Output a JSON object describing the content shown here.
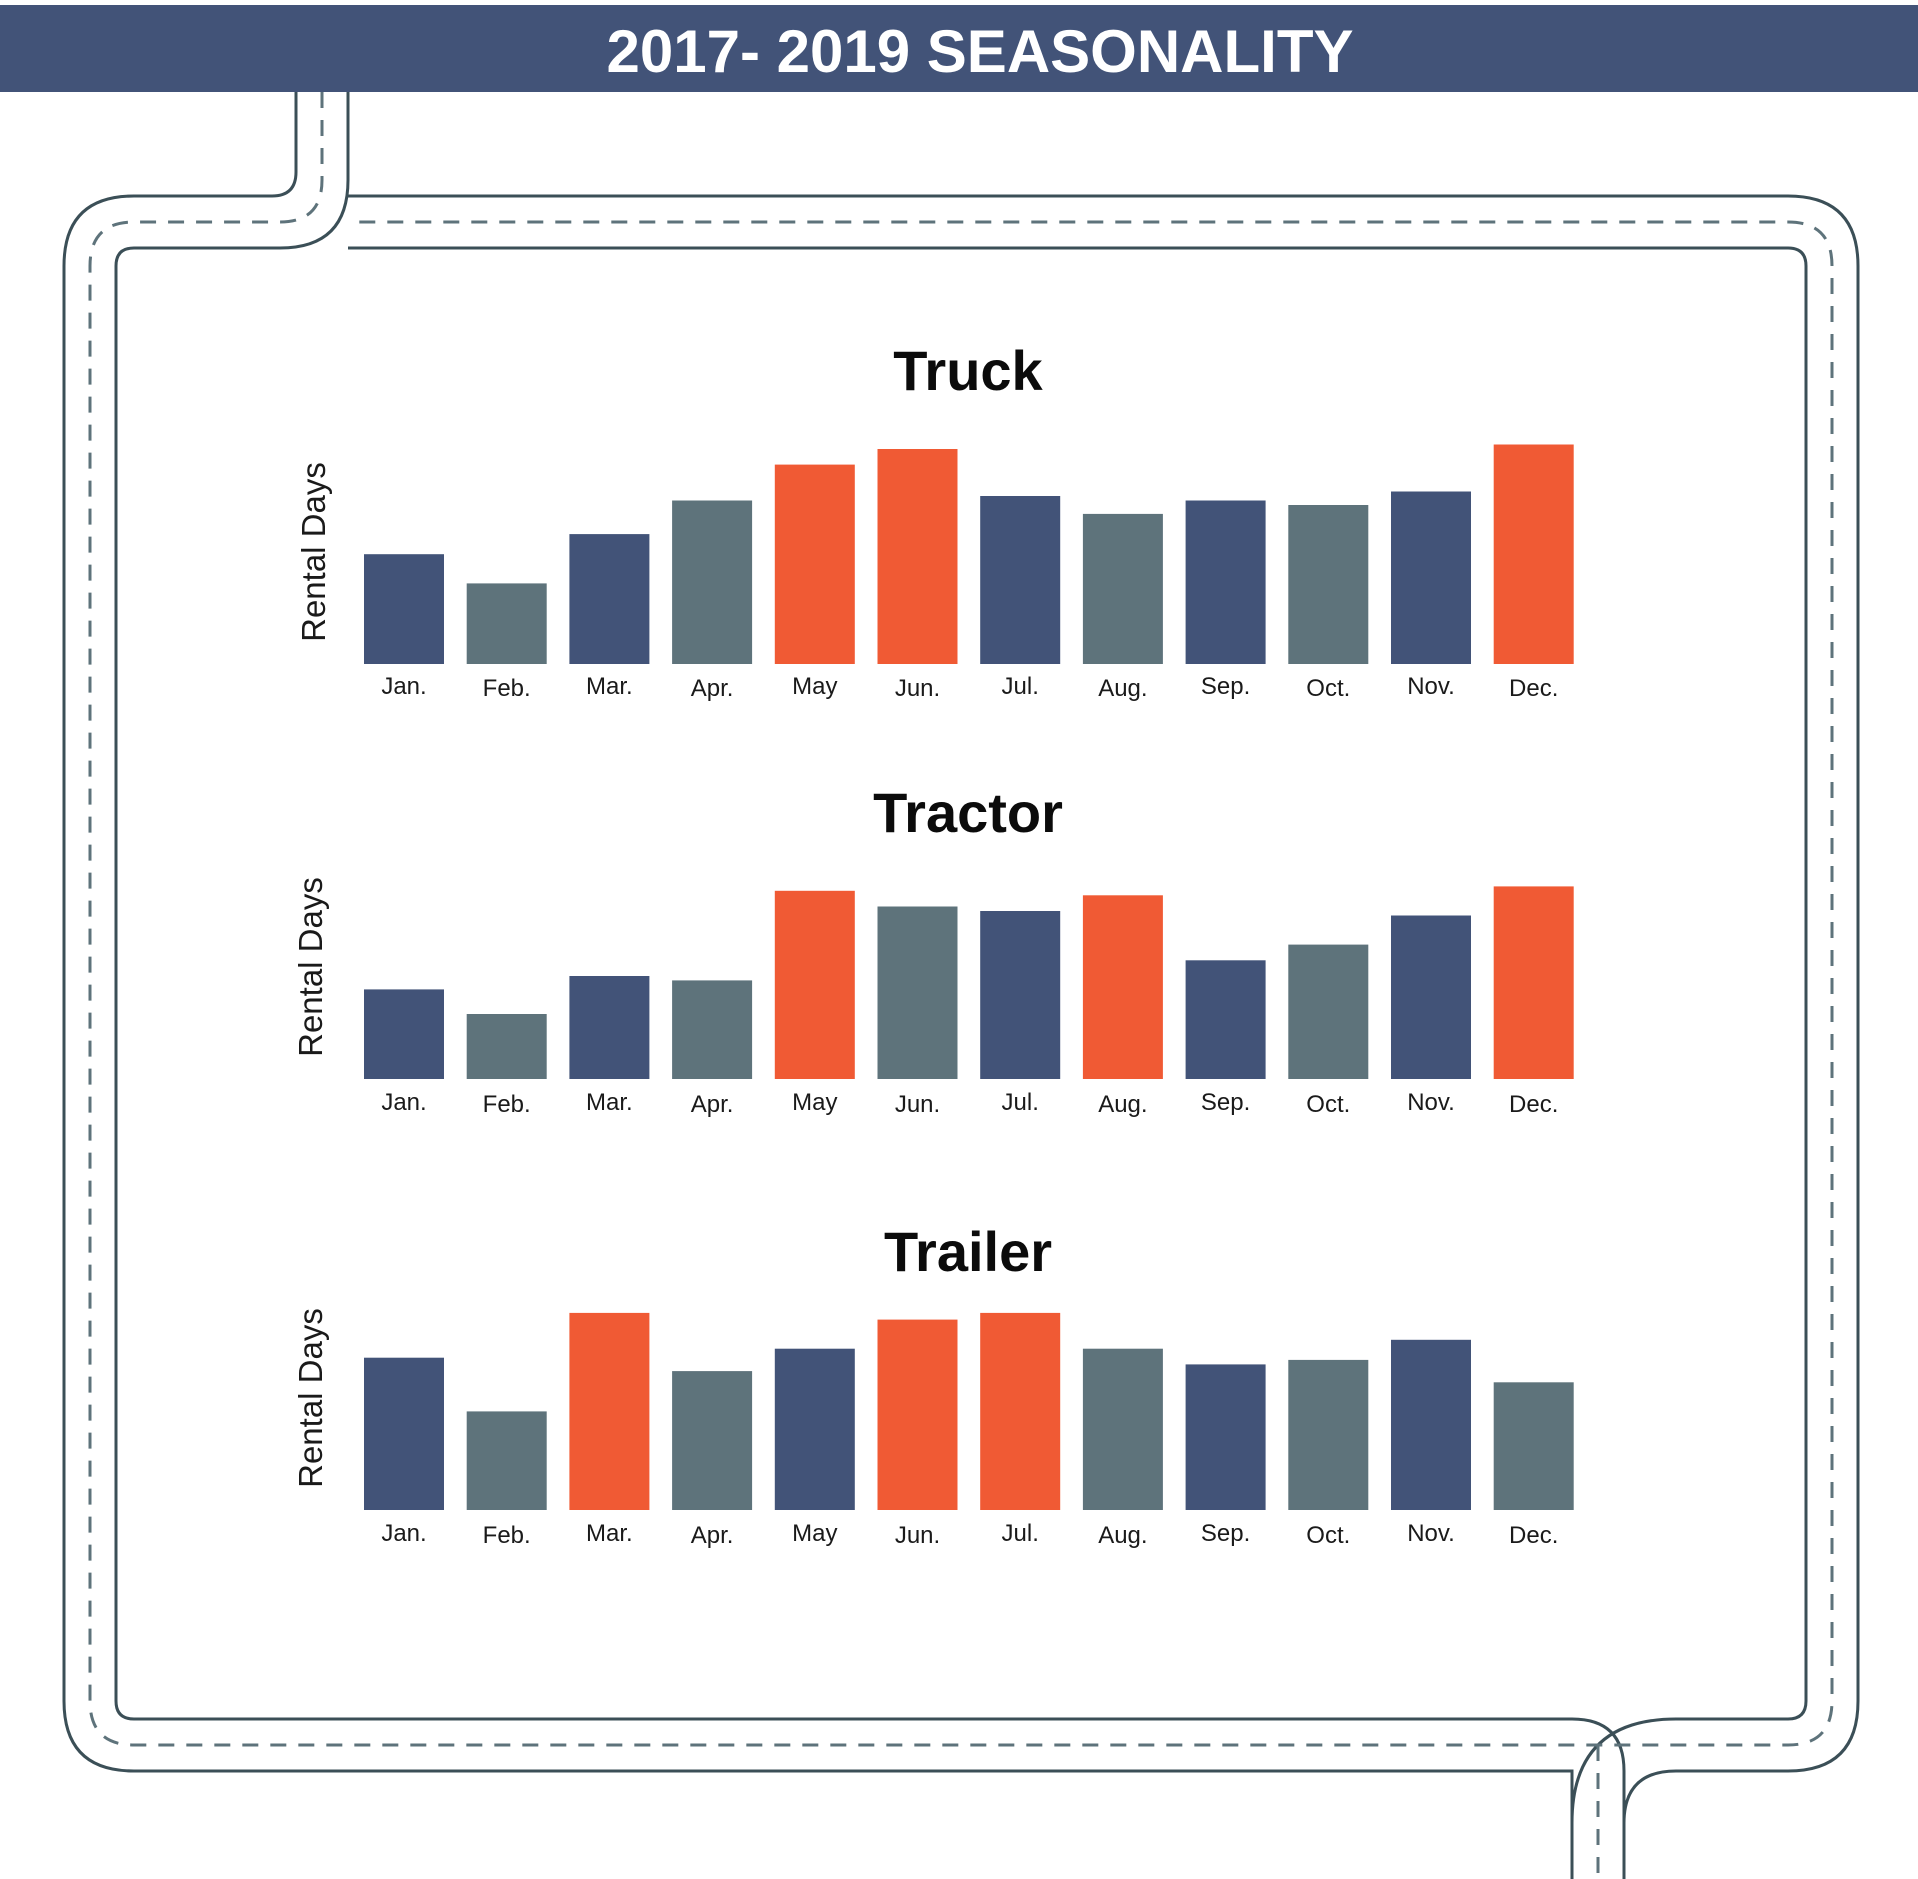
{
  "header": {
    "title": "2017- 2019 SEASONALITY"
  },
  "colors": {
    "header_bg": "#425378",
    "navy": "#425378",
    "slate": "#5e737b",
    "orange": "#f05a34",
    "road": "#3b4f57"
  },
  "chart_data": [
    {
      "type": "bar",
      "title": "Truck",
      "ylabel": "Rental Days",
      "categories": [
        "Jan.",
        "Feb.",
        "Mar.",
        "Apr.",
        "May",
        "Jun.",
        "Jul.",
        "Aug.",
        "Sep.",
        "Oct.",
        "Nov.",
        "Dec."
      ],
      "values": [
        49,
        36,
        58,
        73,
        89,
        96,
        75,
        67,
        73,
        71,
        77,
        98
      ],
      "bar_colors": [
        "navy",
        "slate",
        "navy",
        "slate",
        "orange",
        "orange",
        "navy",
        "slate",
        "navy",
        "slate",
        "navy",
        "orange"
      ],
      "ylim": [
        0,
        100
      ],
      "grid": false
    },
    {
      "type": "bar",
      "title": "Tractor",
      "ylabel": "Rental Days",
      "categories": [
        "Jan.",
        "Feb.",
        "Mar.",
        "Apr.",
        "May",
        "Jun.",
        "Jul.",
        "Aug.",
        "Sep.",
        "Oct.",
        "Nov.",
        "Dec."
      ],
      "values": [
        40,
        29,
        46,
        44,
        84,
        77,
        75,
        82,
        53,
        60,
        73,
        86
      ],
      "bar_colors": [
        "navy",
        "slate",
        "navy",
        "slate",
        "orange",
        "slate",
        "navy",
        "orange",
        "navy",
        "slate",
        "navy",
        "orange"
      ],
      "ylim": [
        0,
        100
      ],
      "grid": false
    },
    {
      "type": "bar",
      "title": "Trailer",
      "ylabel": "Rental Days",
      "categories": [
        "Jan.",
        "Feb.",
        "Mar.",
        "Apr.",
        "May",
        "Jun.",
        "Jul.",
        "Aug.",
        "Sep.",
        "Oct.",
        "Nov.",
        "Dec."
      ],
      "values": [
        68,
        44,
        88,
        62,
        72,
        85,
        88,
        72,
        65,
        67,
        76,
        57
      ],
      "bar_colors": [
        "navy",
        "slate",
        "orange",
        "slate",
        "navy",
        "orange",
        "orange",
        "slate",
        "navy",
        "slate",
        "navy",
        "slate"
      ],
      "ylim": [
        0,
        100
      ],
      "grid": false
    }
  ]
}
